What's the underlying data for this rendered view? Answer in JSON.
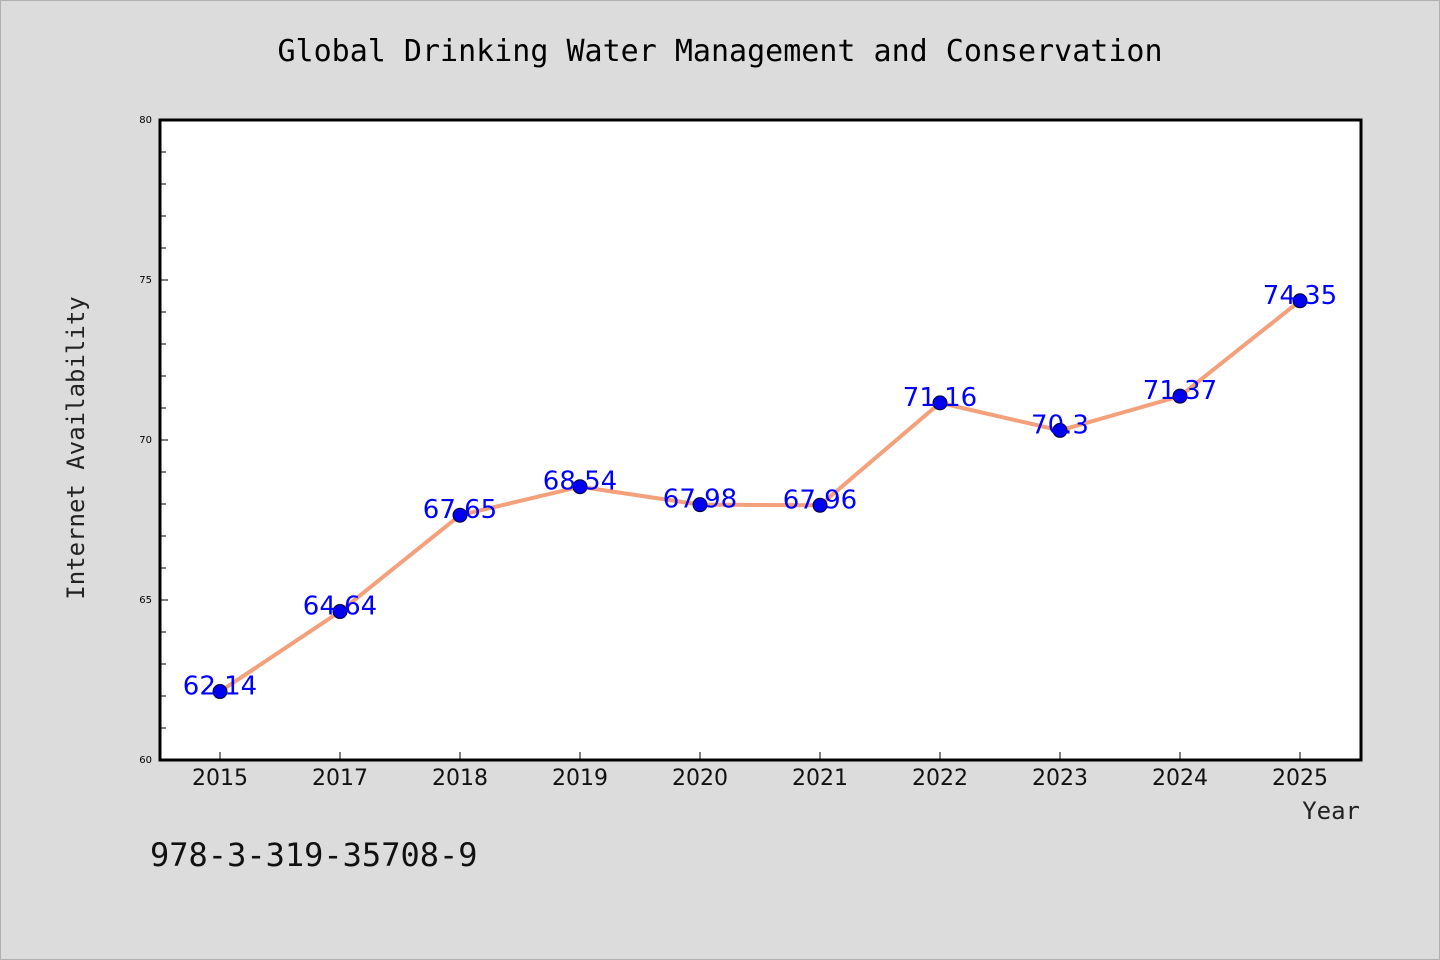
{
  "chart_data": {
    "type": "line",
    "title": "Global Drinking Water Management and Conservation",
    "xlabel": "Year",
    "ylabel": "Internet Availability",
    "categories": [
      "2015",
      "2017",
      "2018",
      "2019",
      "2020",
      "2021",
      "2022",
      "2023",
      "2024",
      "2025"
    ],
    "series": [
      {
        "values": [
          62.14,
          64.64,
          67.65,
          68.54,
          67.98,
          67.96,
          71.16,
          70.3,
          71.37,
          74.35
        ],
        "data_labels": [
          "62.14",
          "64.64",
          "67.65",
          "68.54",
          "67.98",
          "67.96",
          "71.16",
          "70.3",
          "71.37",
          "74.35"
        ],
        "line_color": "#f4a07a",
        "marker_color": "#0000ee",
        "label_color": "#0000ff"
      }
    ],
    "ylim": [
      60,
      80
    ],
    "yticks": [
      "60",
      "65",
      "70",
      "75",
      "80"
    ],
    "grid": false
  },
  "footer": {
    "isbn": "978-3-319-35708-9"
  },
  "colors": {
    "background": "#dcdcdc",
    "plot_background": "#ffffff"
  }
}
